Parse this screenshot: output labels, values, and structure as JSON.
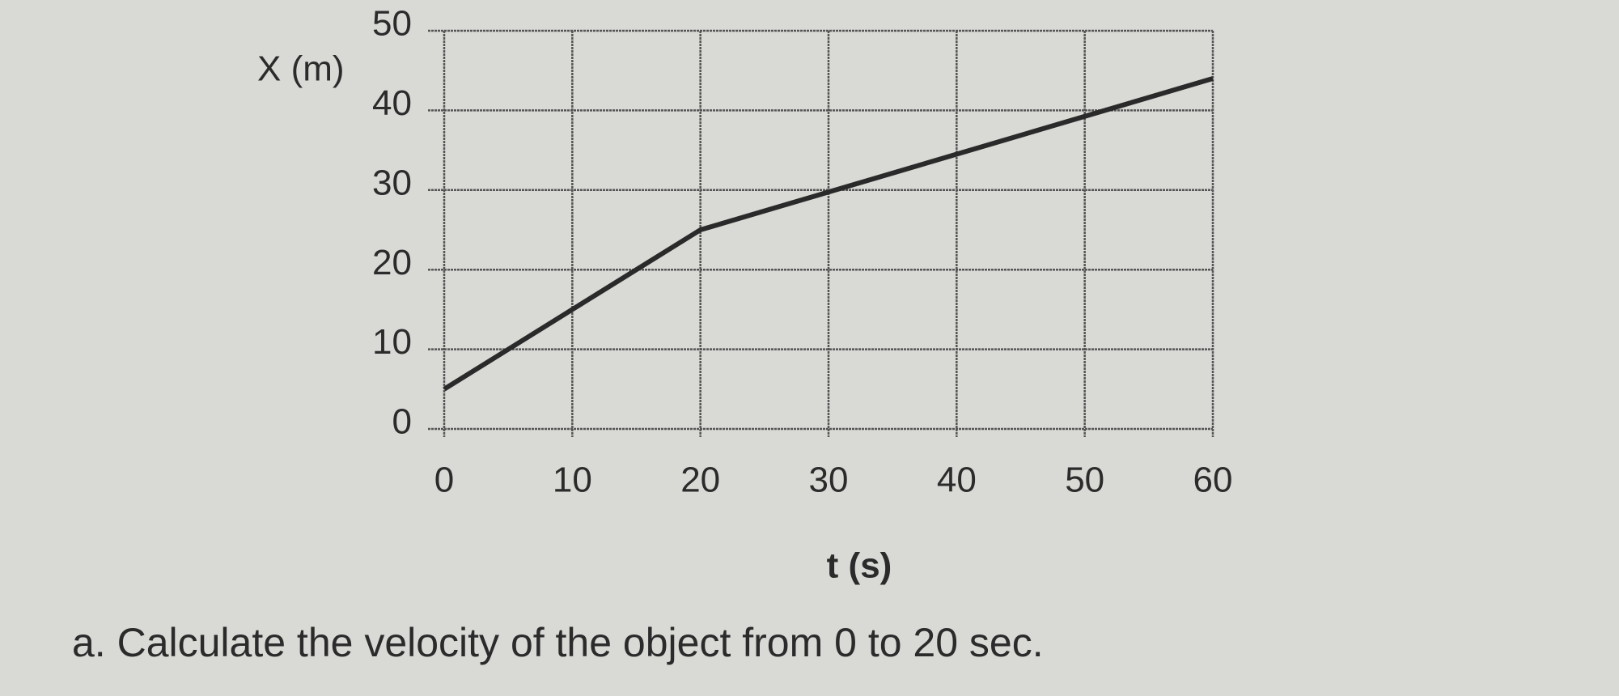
{
  "chart_data": {
    "type": "line",
    "ylabel": "X (m)",
    "xlabel": "t (s)",
    "x": [
      0,
      20,
      60
    ],
    "values": [
      5,
      25,
      44
    ],
    "color": "#2a2a2a",
    "xlim": [
      0,
      60
    ],
    "ylim": [
      0,
      50
    ],
    "xticks": [
      0,
      10,
      20,
      30,
      40,
      50,
      60
    ],
    "yticks": [
      0,
      10,
      20,
      30,
      40,
      50
    ],
    "grid": true
  },
  "question": "a. Calculate the velocity of the object from 0 to 20 sec."
}
